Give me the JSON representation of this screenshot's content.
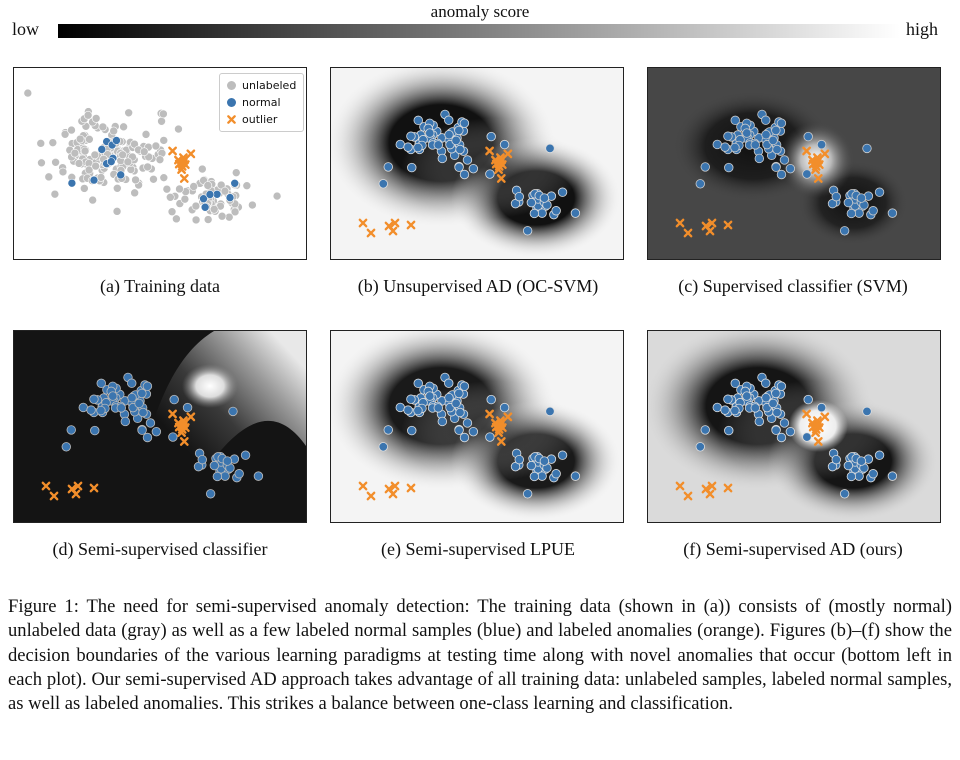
{
  "colorbar": {
    "title": "anomaly score",
    "low": "low",
    "high": "high"
  },
  "legend": {
    "unlabeled": "unlabeled",
    "normal": "normal",
    "outlier": "outlier"
  },
  "colors": {
    "unlabeled": "#bdbdbd",
    "normal": "#3b75af",
    "outlier": "#f28e2b"
  },
  "panels": [
    {
      "caption": "(a)  Training data"
    },
    {
      "caption": "(b)  Unsupervised AD (OC-SVM)"
    },
    {
      "caption": "(c)  Supervised classifier (SVM)"
    },
    {
      "caption": "(d)  Semi-supervised classifier"
    },
    {
      "caption": "(e)  Semi-supervised LPUE"
    },
    {
      "caption": "(f)  Semi-supervised AD (ours)"
    }
  ],
  "figure_caption": "Figure 1: The need for semi-supervised anomaly detection: The training data (shown in (a)) consists of (mostly normal) unlabeled data (gray) as well as a few labeled normal samples (blue) and labeled anomalies (orange). Figures (b)–(f) show the decision boundaries of the various learning paradigms at testing time along with novel anomalies that occur (bottom left in each plot). Our semi-supervised AD approach takes advantage of all training data: unlabeled samples, labeled normal samples, as well as labeled anomalies. This strikes a balance between one-class learning and classification."
}
